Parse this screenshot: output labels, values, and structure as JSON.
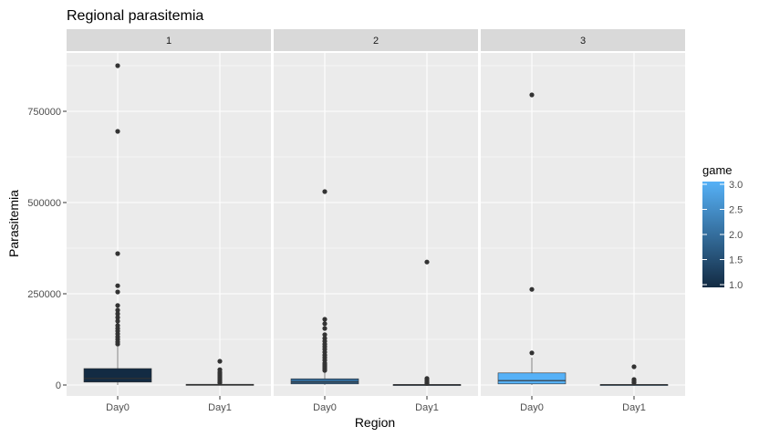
{
  "chart_data": {
    "type": "boxplot",
    "title": "Regional parasitemia",
    "xlabel": "Region",
    "ylabel": "Parasitemia",
    "ylim": [
      -30000,
      910000
    ],
    "y_ticks": [
      0,
      250000,
      500000,
      750000
    ],
    "y_tick_labels": [
      "0",
      "250000",
      "500000",
      "750000"
    ],
    "facets": [
      "1",
      "2",
      "3"
    ],
    "categories": [
      "Day0",
      "Day1"
    ],
    "grid": true,
    "legend": {
      "title": "game",
      "type": "gradient",
      "ticks": [
        1.0,
        1.5,
        2.0,
        2.5,
        3.0
      ],
      "tick_labels": [
        "1.0",
        "1.5",
        "2.0",
        "2.5",
        "3.0"
      ],
      "low_color": "#132b43",
      "high_color": "#56b1f7",
      "placement": "right"
    },
    "panels": [
      {
        "facet": "1",
        "boxes": [
          {
            "category": "Day0",
            "game": 1,
            "fill": "#132b43",
            "min": 0,
            "q1": 8000,
            "median": 18000,
            "q3": 45000,
            "max": 105000,
            "outliers": [
              875000,
              695000,
              360000,
              272000,
              255000,
              218000,
              205000,
              195000,
              185000,
              175000,
              163000,
              155000,
              148000,
              140000,
              132000,
              125000,
              118000,
              112000
            ]
          },
          {
            "category": "Day1",
            "game": 1,
            "fill": "#132b43",
            "min": 0,
            "q1": 500,
            "median": 1000,
            "q3": 2000,
            "max": 4000,
            "outliers": [
              65000,
              42000,
              35000,
              30000,
              25000,
              20000,
              15000,
              10000,
              6000
            ]
          }
        ]
      },
      {
        "facet": "2",
        "boxes": [
          {
            "category": "Day0",
            "game": 2,
            "fill": "#336a98",
            "min": 0,
            "q1": 3000,
            "median": 8000,
            "q3": 17000,
            "max": 38000,
            "outliers": [
              530000,
              180000,
              168000,
              155000,
              138000,
              128000,
              120000,
              112000,
              105000,
              98000,
              90000,
              82000,
              75000,
              68000,
              60000,
              55000,
              50000,
              45000,
              40000
            ]
          },
          {
            "category": "Day1",
            "game": 2,
            "fill": "#336a98",
            "min": 0,
            "q1": 300,
            "median": 800,
            "q3": 1500,
            "max": 3000,
            "outliers": [
              337000,
              18000,
              14000,
              10000,
              7000,
              4500
            ]
          }
        ]
      },
      {
        "facet": "3",
        "boxes": [
          {
            "category": "Day0",
            "game": 3,
            "fill": "#56b1f7",
            "min": 0,
            "q1": 3000,
            "median": 12000,
            "q3": 33000,
            "max": 75000,
            "outliers": [
              795000,
              262000,
              88000
            ]
          },
          {
            "category": "Day1",
            "game": 3,
            "fill": "#56b1f7",
            "min": 0,
            "q1": 300,
            "median": 700,
            "q3": 1500,
            "max": 3000,
            "outliers": [
              50000,
              15000,
              10000,
              6000
            ]
          }
        ]
      }
    ]
  }
}
